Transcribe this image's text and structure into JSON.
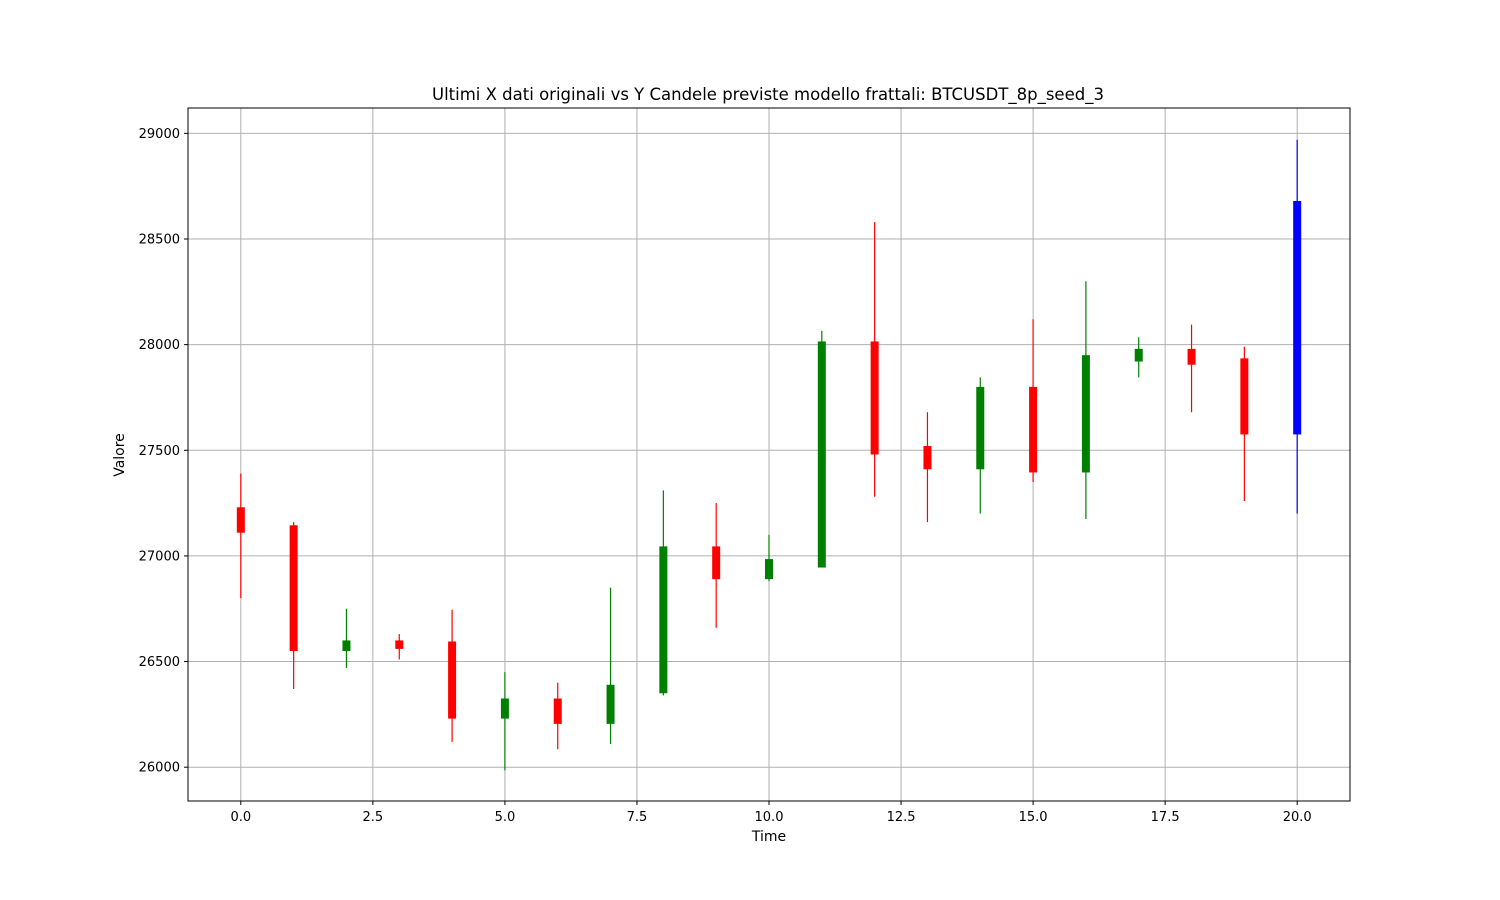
{
  "chart_data": {
    "type": "candlestick",
    "title": "Ultimi X dati originali vs Y Candele previste modello frattali: BTCUSDT_8p_seed_3",
    "xlabel": "Time",
    "ylabel": "Valore",
    "xlim": [
      -1,
      21
    ],
    "ylim": [
      25840,
      29120
    ],
    "xticks": [
      0.0,
      2.5,
      5.0,
      7.5,
      10.0,
      12.5,
      15.0,
      17.5,
      20.0
    ],
    "xtick_labels": [
      "0.0",
      "2.5",
      "5.0",
      "7.5",
      "10.0",
      "12.5",
      "15.0",
      "17.5",
      "20.0"
    ],
    "yticks": [
      26000,
      26500,
      27000,
      27500,
      28000,
      28500,
      29000
    ],
    "ytick_labels": [
      "26000",
      "26500",
      "27000",
      "27500",
      "28000",
      "28500",
      "29000"
    ],
    "grid": true,
    "colors": {
      "up": "#008000",
      "down": "#ff0000",
      "forecast": "#0000ff",
      "grid": "#b0b0b0",
      "axis": "#000000"
    },
    "candles": [
      {
        "t": 0,
        "open": 27230,
        "high": 27390,
        "low": 26800,
        "close": 27110,
        "kind": "down"
      },
      {
        "t": 1,
        "open": 27145,
        "high": 27160,
        "low": 26370,
        "close": 26550,
        "kind": "down"
      },
      {
        "t": 2,
        "open": 26550,
        "high": 26750,
        "low": 26470,
        "close": 26600,
        "kind": "up"
      },
      {
        "t": 3,
        "open": 26600,
        "high": 26630,
        "low": 26510,
        "close": 26560,
        "kind": "down"
      },
      {
        "t": 4,
        "open": 26595,
        "high": 26745,
        "low": 26120,
        "close": 26230,
        "kind": "down"
      },
      {
        "t": 5,
        "open": 26230,
        "high": 26450,
        "low": 25985,
        "close": 26325,
        "kind": "up"
      },
      {
        "t": 6,
        "open": 26325,
        "high": 26400,
        "low": 26085,
        "close": 26205,
        "kind": "down"
      },
      {
        "t": 7,
        "open": 26205,
        "high": 26850,
        "low": 26110,
        "close": 26390,
        "kind": "up"
      },
      {
        "t": 8,
        "open": 26350,
        "high": 27310,
        "low": 26340,
        "close": 27045,
        "kind": "up"
      },
      {
        "t": 9,
        "open": 27045,
        "high": 27250,
        "low": 26660,
        "close": 26890,
        "kind": "down"
      },
      {
        "t": 10,
        "open": 26890,
        "high": 27100,
        "low": 26880,
        "close": 26985,
        "kind": "up"
      },
      {
        "t": 11,
        "open": 26945,
        "high": 28065,
        "low": 26945,
        "close": 28015,
        "kind": "up"
      },
      {
        "t": 12,
        "open": 28015,
        "high": 28580,
        "low": 27280,
        "close": 27480,
        "kind": "down"
      },
      {
        "t": 13,
        "open": 27520,
        "high": 27680,
        "low": 27160,
        "close": 27410,
        "kind": "down"
      },
      {
        "t": 14,
        "open": 27410,
        "high": 27845,
        "low": 27200,
        "close": 27800,
        "kind": "up"
      },
      {
        "t": 15,
        "open": 27800,
        "high": 28120,
        "low": 27350,
        "close": 27395,
        "kind": "down"
      },
      {
        "t": 16,
        "open": 27395,
        "high": 28300,
        "low": 27175,
        "close": 27950,
        "kind": "up"
      },
      {
        "t": 17,
        "open": 27920,
        "high": 28035,
        "low": 27845,
        "close": 27980,
        "kind": "up"
      },
      {
        "t": 18,
        "open": 27980,
        "high": 28095,
        "low": 27680,
        "close": 27905,
        "kind": "down"
      },
      {
        "t": 19,
        "open": 27935,
        "high": 27990,
        "low": 27260,
        "close": 27575,
        "kind": "down"
      },
      {
        "t": 20,
        "open": 27575,
        "high": 28970,
        "low": 27200,
        "close": 28680,
        "kind": "forecast"
      }
    ]
  }
}
